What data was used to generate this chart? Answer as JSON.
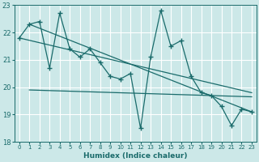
{
  "xlabel": "Humidex (Indice chaleur)",
  "bg_color": "#cce8e8",
  "grid_color": "#ffffff",
  "line_color": "#1a6b6b",
  "xlim": [
    -0.5,
    23.5
  ],
  "ylim": [
    18,
    23
  ],
  "xticks": [
    0,
    1,
    2,
    3,
    4,
    5,
    6,
    7,
    8,
    9,
    10,
    11,
    12,
    13,
    14,
    15,
    16,
    17,
    18,
    19,
    20,
    21,
    22,
    23
  ],
  "yticks": [
    18,
    19,
    20,
    21,
    22,
    23
  ],
  "series1": [
    21.8,
    22.3,
    22.4,
    20.7,
    22.7,
    21.4,
    21.1,
    21.4,
    20.9,
    20.4,
    20.3,
    20.5,
    18.5,
    21.1,
    22.8,
    21.5,
    21.7,
    20.4,
    19.8,
    19.7,
    19.3,
    18.6,
    19.2,
    19.1
  ],
  "trend1_x": [
    0,
    23
  ],
  "trend1_y": [
    21.8,
    19.8
  ],
  "trend2_x": [
    1,
    23
  ],
  "trend2_y": [
    19.9,
    19.65
  ],
  "trend3_x": [
    1,
    23
  ],
  "trend3_y": [
    22.3,
    19.1
  ]
}
